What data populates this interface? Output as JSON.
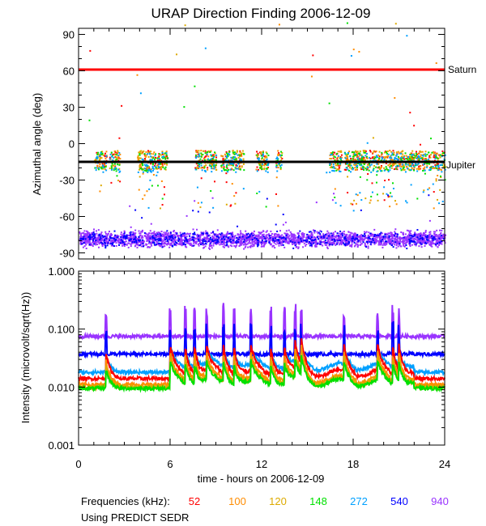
{
  "chart_data": [
    {
      "type": "scatter",
      "title": "URAP Direction Finding  2006-12-09",
      "ylabel": "Azimuthal angle (deg)",
      "xlim": [
        0,
        24
      ],
      "ylim": [
        -95,
        95
      ],
      "yticks": [
        "90",
        "60",
        "30",
        "0",
        "-30",
        "-60",
        "-90"
      ],
      "reference_lines": [
        {
          "name": "Saturn",
          "label": "Saturn",
          "color": "#ff0000",
          "y": 61
        },
        {
          "name": "Jupiter",
          "label": "Jupiter",
          "color": "#000000",
          "y": -15
        }
      ],
      "series": [
        {
          "name": "52 kHz",
          "color": "#ff0000",
          "center": -13,
          "note": "scattered clusters near Jupiter line"
        },
        {
          "name": "100 kHz",
          "color": "#ff8c00",
          "center": -13
        },
        {
          "name": "120 kHz",
          "color": "#ddaa00",
          "center": -13
        },
        {
          "name": "148 kHz",
          "color": "#00e000",
          "center": -14
        },
        {
          "name": "272 kHz",
          "color": "#00a0ff",
          "center": -15
        },
        {
          "name": "540 kHz",
          "color": "#0000ff",
          "center": -78
        },
        {
          "name": "940 kHz",
          "color": "#9933ff",
          "center": -78
        }
      ]
    },
    {
      "type": "line",
      "ylabel": "Intensity (microvolt/sqrt(Hz))",
      "xlabel": "time - hours on 2006-12-09",
      "xticks": [
        "0",
        "6",
        "12",
        "18",
        "24"
      ],
      "yticks": [
        "1.000",
        "0.100",
        "0.010",
        "0.001"
      ],
      "yscale": "log",
      "xlim": [
        0,
        24
      ],
      "ylim": [
        0.001,
        1.0
      ],
      "series": [
        {
          "name": "52",
          "color": "#ff0000",
          "baseline": 0.014
        },
        {
          "name": "100",
          "color": "#ff8c00",
          "baseline": 0.011
        },
        {
          "name": "120",
          "color": "#ddaa00",
          "baseline": 0.01
        },
        {
          "name": "148",
          "color": "#00e000",
          "baseline": 0.0095
        },
        {
          "name": "272",
          "color": "#00a0ff",
          "baseline": 0.018
        },
        {
          "name": "540",
          "color": "#0000ff",
          "baseline": 0.037
        },
        {
          "name": "940",
          "color": "#9933ff",
          "baseline": 0.075
        }
      ]
    }
  ],
  "legend": {
    "title": "Frequencies (kHz):",
    "items": [
      {
        "label": "52",
        "color": "#ff0000"
      },
      {
        "label": "100",
        "color": "#ff8c00"
      },
      {
        "label": "120",
        "color": "#ddaa00"
      },
      {
        "label": "148",
        "color": "#00e000"
      },
      {
        "label": "272",
        "color": "#00a0ff"
      },
      {
        "label": "540",
        "color": "#0000ff"
      },
      {
        "label": "940",
        "color": "#9933ff"
      }
    ]
  },
  "footer": {
    "note": "Using PREDICT SEDR"
  }
}
